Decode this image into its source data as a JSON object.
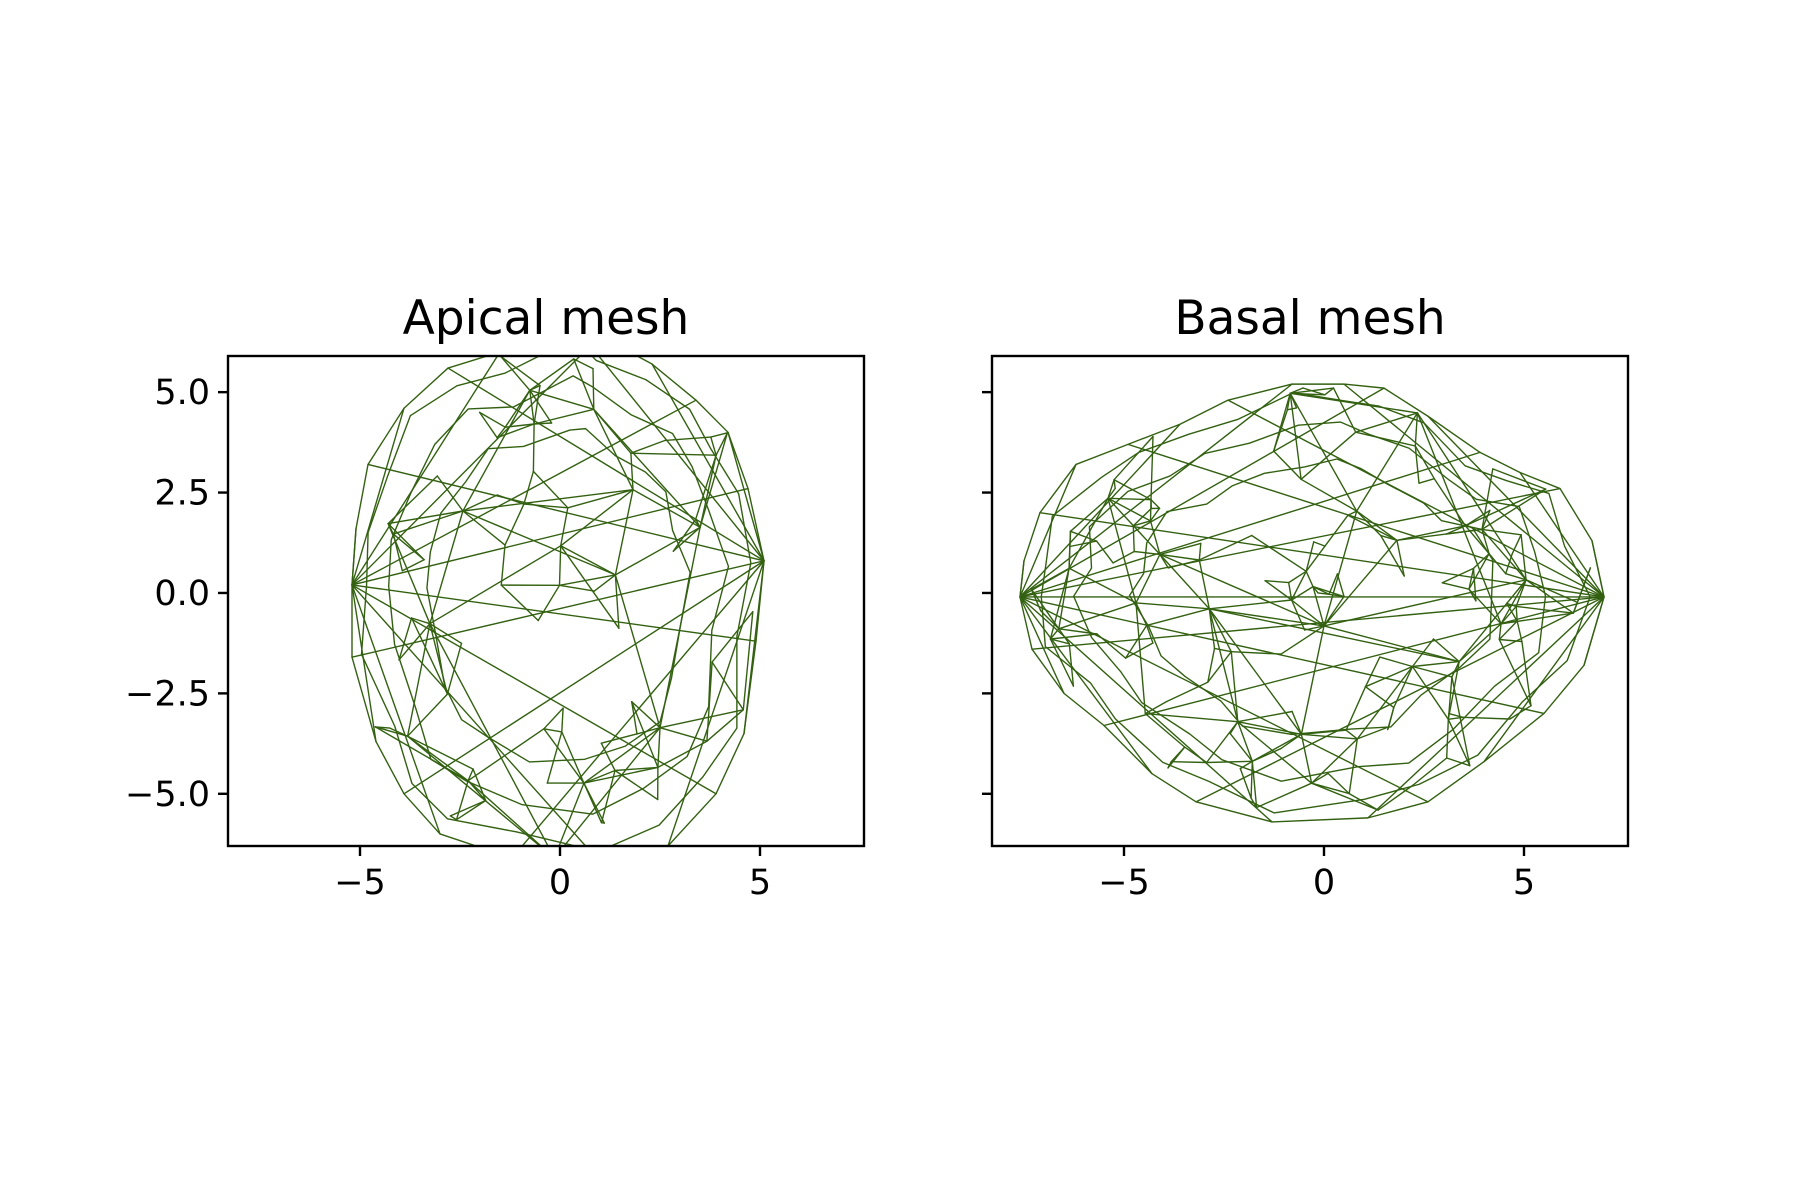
{
  "chart_data": [
    {
      "type": "mesh",
      "title": "Apical mesh",
      "xlim": [
        -8.3,
        7.6
      ],
      "ylim": [
        -6.3,
        5.9
      ],
      "xticks": [
        {
          "value": -5,
          "label": "−5"
        },
        {
          "value": 0,
          "label": "0"
        },
        {
          "value": 5,
          "label": "5"
        }
      ],
      "yticks": [
        {
          "value": 5,
          "label": "5.0"
        },
        {
          "value": 2.5,
          "label": "2.5"
        },
        {
          "value": 0,
          "label": "0.0"
        },
        {
          "value": -2.5,
          "label": "−2.5"
        },
        {
          "value": -5,
          "label": "−5.0"
        }
      ],
      "show_ytick_labels": true,
      "grid": false,
      "color": "#336111",
      "outline": [
        [
          -5.2,
          0.2
        ],
        [
          -5.2,
          -1.6
        ],
        [
          -4.6,
          -3.7
        ],
        [
          -3.9,
          -5.0
        ],
        [
          -3.0,
          -6.0
        ],
        [
          -1.2,
          -6.6
        ],
        [
          1.0,
          -6.7
        ],
        [
          2.7,
          -6.3
        ],
        [
          3.9,
          -5.0
        ],
        [
          4.6,
          -3.5
        ],
        [
          4.9,
          -1.2
        ],
        [
          5.1,
          0.8
        ],
        [
          4.7,
          2.6
        ],
        [
          4.2,
          4.0
        ],
        [
          3.4,
          4.8
        ],
        [
          2.3,
          5.7
        ],
        [
          1.0,
          6.4
        ],
        [
          0.4,
          6.6
        ],
        [
          -1.5,
          6.0
        ],
        [
          -2.8,
          5.6
        ],
        [
          -3.9,
          4.6
        ],
        [
          -4.8,
          3.2
        ],
        [
          -5.1,
          1.6
        ]
      ]
    },
    {
      "type": "mesh",
      "title": "Basal mesh",
      "xlim": [
        -8.3,
        7.6
      ],
      "ylim": [
        -6.3,
        5.9
      ],
      "xticks": [
        {
          "value": -5,
          "label": "−5"
        },
        {
          "value": 0,
          "label": "0"
        },
        {
          "value": 5,
          "label": "5"
        }
      ],
      "yticks": [
        {
          "value": 5,
          "label": ""
        },
        {
          "value": 2.5,
          "label": ""
        },
        {
          "value": 0,
          "label": ""
        },
        {
          "value": -2.5,
          "label": ""
        },
        {
          "value": -5,
          "label": ""
        }
      ],
      "show_ytick_labels": false,
      "grid": false,
      "color": "#336111",
      "outline": [
        [
          -7.6,
          -0.1
        ],
        [
          -7.3,
          -1.4
        ],
        [
          -6.5,
          -2.5
        ],
        [
          -5.5,
          -3.3
        ],
        [
          -4.3,
          -4.5
        ],
        [
          -3.2,
          -5.2
        ],
        [
          -1.3,
          -5.7
        ],
        [
          1.1,
          -5.6
        ],
        [
          2.6,
          -5.2
        ],
        [
          4.0,
          -4.2
        ],
        [
          5.5,
          -3.0
        ],
        [
          6.5,
          -1.8
        ],
        [
          7.0,
          -0.1
        ],
        [
          6.7,
          1.3
        ],
        [
          5.9,
          2.6
        ],
        [
          4.9,
          3.0
        ],
        [
          3.9,
          3.5
        ],
        [
          2.6,
          4.4
        ],
        [
          1.5,
          5.1
        ],
        [
          0.5,
          5.2
        ],
        [
          -0.8,
          5.2
        ],
        [
          -2.4,
          4.8
        ],
        [
          -3.6,
          4.2
        ],
        [
          -4.9,
          3.7
        ],
        [
          -6.2,
          3.2
        ],
        [
          -7.1,
          2.0
        ],
        [
          -7.5,
          0.8
        ]
      ]
    }
  ]
}
